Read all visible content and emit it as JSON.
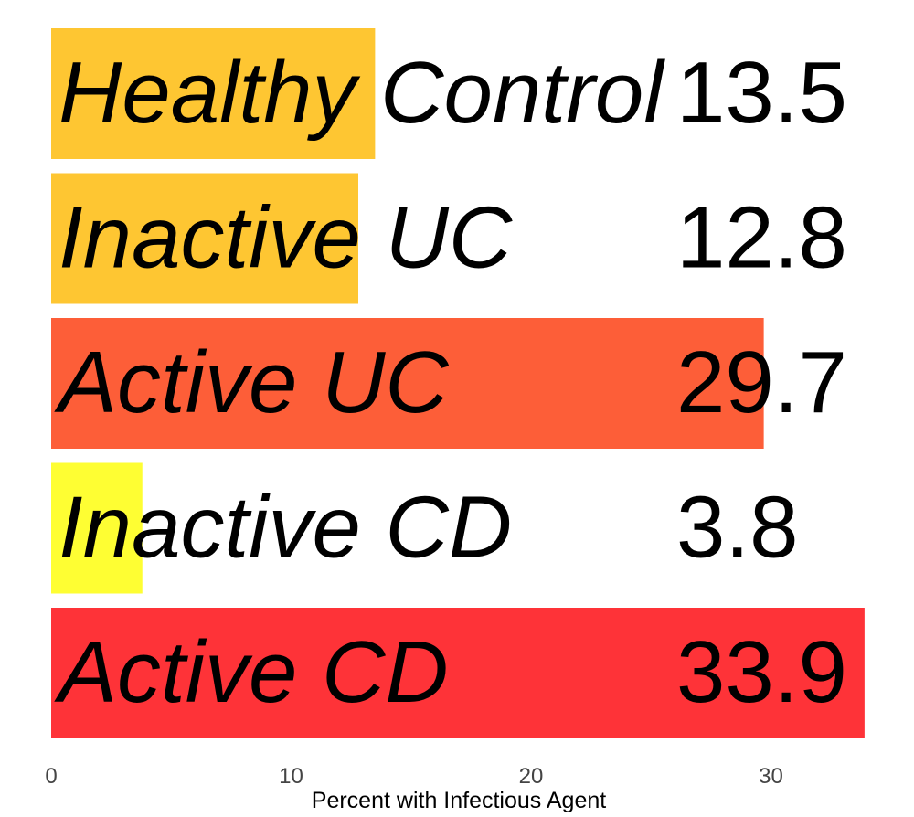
{
  "chart_data": {
    "type": "bar",
    "orientation": "horizontal",
    "categories": [
      "Healthy Control",
      "Inactive UC",
      "Active UC",
      "Inactive CD",
      "Active CD"
    ],
    "values": [
      13.5,
      12.8,
      29.7,
      3.8,
      33.9
    ],
    "value_labels": [
      "13.5",
      "12.8",
      "29.7",
      "3.8",
      "33.9"
    ],
    "colors": [
      "#FEC632",
      "#FEC632",
      "#FD5E38",
      "#FEFE33",
      "#FE3338"
    ],
    "xlabel": "Percent with Infectious Agent",
    "ylabel": "",
    "xlim": [
      0,
      34
    ],
    "xticks": [
      0,
      10,
      20,
      30
    ],
    "grid": false,
    "legend": "none"
  }
}
